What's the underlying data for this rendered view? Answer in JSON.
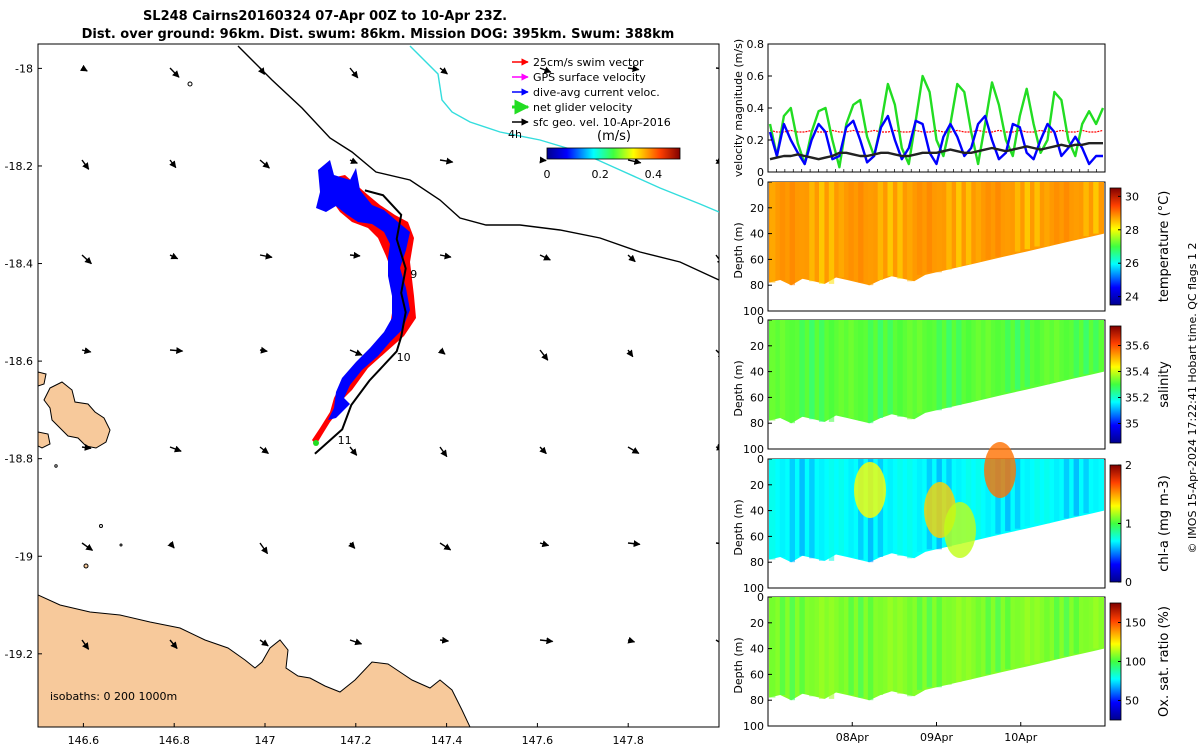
{
  "title": {
    "line1": "SL248 Cairns20160324 07-Apr 00Z to 10-Apr 23Z.",
    "line2": "Dist. over ground: 96km. Dist. swum: 86km. Mission DOG: 395km. Swum: 388km"
  },
  "footer": "© IMOS 15-Apr-2024 17:22:41 Hobart time. QC flags 1  2",
  "colors": {
    "land": "#f7c99b",
    "swim": "#ff0000",
    "gps": "#ff00ff",
    "dive_avg": "#0000ff",
    "net": "#22dd22",
    "sfc_geo": "#000000",
    "cyan_line": "#33dddd"
  },
  "chart_data": [
    {
      "type": "map",
      "xlim": [
        146.5,
        148.0
      ],
      "ylim": [
        -19.35,
        -17.95
      ],
      "x_ticks": [
        "146.6",
        "146.8",
        "147",
        "147.2",
        "147.4",
        "147.6",
        "147.8"
      ],
      "x_tick_values": [
        146.6,
        146.8,
        147.0,
        147.2,
        147.4,
        147.6,
        147.8
      ],
      "y_ticks": [
        "-18",
        "-18.2",
        "-18.4",
        "-18.6",
        "-18.8",
        "-19",
        "-19.2"
      ],
      "y_tick_values": [
        -18.0,
        -18.2,
        -18.4,
        -18.6,
        -18.8,
        -19.0,
        -19.2
      ],
      "legend": [
        {
          "label": "25cm/s swim vector",
          "color": "#ff0000"
        },
        {
          "label": "GPS surface velocity",
          "color": "#ff00ff"
        },
        {
          "label": "dive-avg current veloc.",
          "color": "#0000ff"
        },
        {
          "label": "net glider velocity",
          "color": "#22dd22"
        },
        {
          "label": "sfc geo. vel. 10-Apr-2016",
          "color": "#000000"
        }
      ],
      "legend_position": "top-right",
      "colorbar": {
        "label": "(m/s)",
        "range": [
          0,
          0.5
        ],
        "ticks": [
          "0",
          "0.2",
          "0.4"
        ],
        "tick_values": [
          0,
          0.2,
          0.4
        ],
        "scale_label": "4h"
      },
      "isobaths_label": "isobaths: 0   200  1000m",
      "day_markers": [
        {
          "label": "9",
          "lon": 147.32,
          "lat": -18.43
        },
        {
          "label": "10",
          "lon": 147.29,
          "lat": -18.6
        },
        {
          "label": "11",
          "lon": 147.16,
          "lat": -18.77
        }
      ],
      "track": [
        [
          147.11,
          -18.79
        ],
        [
          147.17,
          -18.74
        ],
        [
          147.19,
          -18.69
        ],
        [
          147.23,
          -18.64
        ],
        [
          147.27,
          -18.6
        ],
        [
          147.29,
          -18.58
        ],
        [
          147.3,
          -18.55
        ],
        [
          147.31,
          -18.5
        ],
        [
          147.3,
          -18.46
        ],
        [
          147.31,
          -18.41
        ],
        [
          147.29,
          -18.35
        ],
        [
          147.3,
          -18.3
        ],
        [
          147.26,
          -18.26
        ],
        [
          147.22,
          -18.25
        ]
      ]
    },
    {
      "type": "line",
      "ylabel": "velocity magnitude (m/s)",
      "ylim": [
        0,
        0.8
      ],
      "y_ticks": [
        "0",
        "0.2",
        "0.4",
        "0.6",
        "0.8"
      ],
      "y_tick_values": [
        0,
        0.2,
        0.4,
        0.6,
        0.8
      ],
      "x_range_days": [
        "07-Apr 00Z",
        "10-Apr 23Z"
      ],
      "series": [
        {
          "color": "#ff0000",
          "values": [
            0.26,
            0.25,
            0.25,
            0.26,
            0.25,
            0.25,
            0.26,
            0.25,
            0.25,
            0.26,
            0.25,
            0.25,
            0.26,
            0.25,
            0.25,
            0.26,
            0.25,
            0.25,
            0.26,
            0.25,
            0.25,
            0.26,
            0.25,
            0.25,
            0.26,
            0.25,
            0.25,
            0.26,
            0.25,
            0.25,
            0.26,
            0.25,
            0.25,
            0.26,
            0.25,
            0.25,
            0.26,
            0.25,
            0.25,
            0.26,
            0.25,
            0.25,
            0.26,
            0.25,
            0.25,
            0.26,
            0.25,
            0.25,
            0.26
          ]
        },
        {
          "color": "#22dd22",
          "values": [
            0.3,
            0.1,
            0.35,
            0.4,
            0.18,
            0.05,
            0.25,
            0.38,
            0.4,
            0.2,
            0.03,
            0.3,
            0.42,
            0.45,
            0.22,
            0.1,
            0.3,
            0.55,
            0.42,
            0.15,
            0.05,
            0.32,
            0.6,
            0.5,
            0.2,
            0.1,
            0.3,
            0.55,
            0.5,
            0.25,
            0.05,
            0.3,
            0.56,
            0.42,
            0.2,
            0.1,
            0.35,
            0.52,
            0.3,
            0.12,
            0.2,
            0.5,
            0.45,
            0.2,
            0.1,
            0.3,
            0.38,
            0.3,
            0.4
          ]
        },
        {
          "color": "#0000ff",
          "values": [
            0.25,
            0.1,
            0.3,
            0.2,
            0.12,
            0.05,
            0.2,
            0.3,
            0.25,
            0.08,
            0.1,
            0.28,
            0.32,
            0.2,
            0.06,
            0.1,
            0.28,
            0.35,
            0.2,
            0.08,
            0.15,
            0.32,
            0.3,
            0.12,
            0.05,
            0.22,
            0.3,
            0.22,
            0.1,
            0.15,
            0.3,
            0.35,
            0.2,
            0.08,
            0.12,
            0.3,
            0.28,
            0.12,
            0.08,
            0.2,
            0.3,
            0.25,
            0.1,
            0.15,
            0.22,
            0.15,
            0.05,
            0.1,
            0.1
          ]
        },
        {
          "color": "#222222",
          "values": [
            0.08,
            0.09,
            0.1,
            0.1,
            0.11,
            0.1,
            0.09,
            0.08,
            0.09,
            0.1,
            0.12,
            0.12,
            0.11,
            0.1,
            0.1,
            0.11,
            0.12,
            0.12,
            0.11,
            0.1,
            0.1,
            0.11,
            0.12,
            0.12,
            0.12,
            0.13,
            0.14,
            0.13,
            0.12,
            0.12,
            0.13,
            0.14,
            0.15,
            0.14,
            0.13,
            0.14,
            0.15,
            0.16,
            0.15,
            0.14,
            0.15,
            0.16,
            0.17,
            0.16,
            0.17,
            0.17,
            0.18,
            0.18,
            0.18
          ]
        }
      ]
    },
    {
      "type": "heatmap",
      "quantity": "temperature",
      "ylabel": "Depth (m)",
      "colorbar_label": "temperature (°C)",
      "clim": [
        23.5,
        30.5
      ],
      "colorbar_ticks": [
        "24",
        "26",
        "28",
        "30"
      ],
      "colorbar_tick_values": [
        24,
        26,
        28,
        30
      ],
      "y_ticks": [
        "0",
        "20",
        "40",
        "60",
        "80",
        "100"
      ],
      "y_tick_values": [
        0,
        20,
        40,
        60,
        80,
        100
      ],
      "ylim": [
        0,
        100
      ],
      "bottom_depth_profile": [
        78,
        76,
        80,
        75,
        77,
        79,
        74,
        76,
        78,
        80,
        76,
        73,
        75,
        77,
        72,
        70,
        68,
        66,
        64,
        62,
        60,
        58,
        56,
        54,
        52,
        50,
        48,
        46,
        44,
        42,
        40
      ],
      "typical_value": 28.8
    },
    {
      "type": "heatmap",
      "quantity": "salinity",
      "ylabel": "Depth (m)",
      "colorbar_label": "salinity",
      "clim": [
        34.85,
        35.75
      ],
      "colorbar_ticks": [
        "35",
        "35.2",
        "35.4",
        "35.6"
      ],
      "colorbar_tick_values": [
        35.0,
        35.2,
        35.4,
        35.6
      ],
      "y_ticks": [
        "0",
        "20",
        "40",
        "60",
        "80",
        "100"
      ],
      "y_tick_values": [
        0,
        20,
        40,
        60,
        80,
        100
      ],
      "ylim": [
        0,
        100
      ],
      "bottom_depth_profile": [
        78,
        76,
        80,
        75,
        77,
        79,
        74,
        76,
        78,
        80,
        76,
        73,
        75,
        77,
        72,
        70,
        68,
        66,
        64,
        62,
        60,
        58,
        56,
        54,
        52,
        50,
        48,
        46,
        44,
        42,
        40
      ],
      "typical_value": 35.32
    },
    {
      "type": "heatmap",
      "quantity": "chl-a",
      "ylabel": "Depth (m)",
      "colorbar_label": "chl-a (mg m-3)",
      "clim": [
        0,
        2
      ],
      "colorbar_ticks": [
        "0",
        "1",
        "2"
      ],
      "colorbar_tick_values": [
        0,
        1,
        2
      ],
      "y_ticks": [
        "0",
        "20",
        "40",
        "60",
        "80",
        "100"
      ],
      "y_tick_values": [
        0,
        20,
        40,
        60,
        80,
        100
      ],
      "ylim": [
        0,
        100
      ],
      "bottom_depth_profile": [
        78,
        76,
        80,
        75,
        77,
        79,
        74,
        76,
        78,
        80,
        76,
        73,
        75,
        77,
        72,
        70,
        68,
        66,
        64,
        62,
        60,
        58,
        56,
        54,
        52,
        50,
        48,
        46,
        44,
        42,
        40
      ],
      "typical_value": 0.7
    },
    {
      "type": "heatmap",
      "quantity": "oxygen",
      "ylabel": "Depth (m)",
      "colorbar_label": "Ox. sat. ratio (%)",
      "clim": [
        25,
        175
      ],
      "colorbar_ticks": [
        "50",
        "100",
        "150"
      ],
      "colorbar_tick_values": [
        50,
        100,
        150
      ],
      "y_ticks": [
        "0",
        "20",
        "40",
        "60",
        "80",
        "100"
      ],
      "y_tick_values": [
        0,
        20,
        40,
        60,
        80,
        100
      ],
      "ylim": [
        0,
        100
      ],
      "bottom_depth_profile": [
        78,
        76,
        80,
        75,
        77,
        79,
        74,
        76,
        78,
        80,
        76,
        73,
        75,
        77,
        72,
        70,
        68,
        66,
        64,
        62,
        60,
        58,
        56,
        54,
        52,
        50,
        48,
        46,
        44,
        42,
        40
      ],
      "typical_value": 108,
      "x_ticks": [
        "08Apr",
        "09Apr",
        "10Apr"
      ],
      "x_tick_days": [
        1,
        2,
        3
      ]
    }
  ]
}
